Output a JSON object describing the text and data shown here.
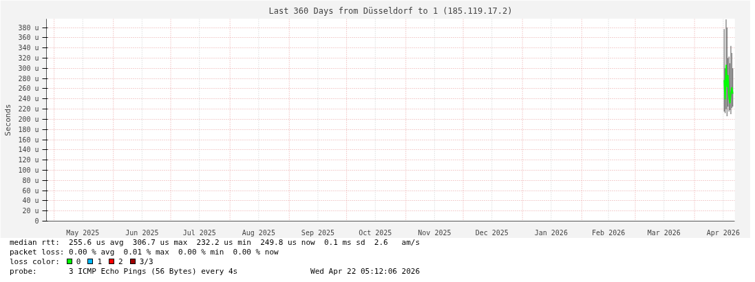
{
  "chart_data": {
    "type": "line",
    "title": "Last 360 Days from Düsseldorf to 1 (185.119.17.2)",
    "ylabel": "Seconds",
    "legend_title": "loss color:",
    "xlim": [
      "2025-04-27",
      "2026-04-22"
    ],
    "xticks": [
      {
        "value": "2025-05-01",
        "label": null
      },
      {
        "value": "2025-05-16",
        "label": "May 2025"
      },
      {
        "value": "2025-06-01",
        "label": null
      },
      {
        "value": "2025-06-16",
        "label": "Jun 2025"
      },
      {
        "value": "2025-07-01",
        "label": null
      },
      {
        "value": "2025-07-16",
        "label": "Jul 2025"
      },
      {
        "value": "2025-08-01",
        "label": null
      },
      {
        "value": "2025-08-16",
        "label": "Aug 2025"
      },
      {
        "value": "2025-09-01",
        "label": null
      },
      {
        "value": "2025-09-16",
        "label": "Sep 2025"
      },
      {
        "value": "2025-10-01",
        "label": null
      },
      {
        "value": "2025-10-16",
        "label": "Oct 2025"
      },
      {
        "value": "2025-11-01",
        "label": null
      },
      {
        "value": "2025-11-16",
        "label": "Nov 2025"
      },
      {
        "value": "2025-12-01",
        "label": null
      },
      {
        "value": "2025-12-16",
        "label": "Dec 2025"
      },
      {
        "value": "2026-01-01",
        "label": null
      },
      {
        "value": "2026-01-16",
        "label": "Jan 2026"
      },
      {
        "value": "2026-02-01",
        "label": null
      },
      {
        "value": "2026-02-15",
        "label": "Feb 2026"
      },
      {
        "value": "2026-03-01",
        "label": null
      },
      {
        "value": "2026-03-16",
        "label": "Mar 2026"
      },
      {
        "value": "2026-04-01",
        "label": null
      },
      {
        "value": "2026-04-16",
        "label": "Apr 2026"
      }
    ],
    "ylim": [
      0,
      397
    ],
    "yticks": [
      0,
      {
        "value": 20,
        "label": "20 u"
      },
      {
        "value": 40,
        "label": "40 u"
      },
      {
        "value": 60,
        "label": "60 u"
      },
      {
        "value": 80,
        "label": "80 u"
      },
      {
        "value": 100,
        "label": "100 u"
      },
      {
        "value": 120,
        "label": "120 u"
      },
      {
        "value": 140,
        "label": "140 u"
      },
      {
        "value": 160,
        "label": "160 u"
      },
      {
        "value": 180,
        "label": "180 u"
      },
      {
        "value": 200,
        "label": "200 u"
      },
      {
        "value": 220,
        "label": "220 u"
      },
      {
        "value": 240,
        "label": "240 u"
      },
      {
        "value": 260,
        "label": "260 u"
      },
      {
        "value": 280,
        "label": "280 u"
      },
      {
        "value": 300,
        "label": "300 u"
      },
      {
        "value": 320,
        "label": "320 u"
      },
      {
        "value": 340,
        "label": "340 u"
      },
      {
        "value": 360,
        "label": "360 u"
      },
      {
        "value": 380,
        "label": "380 u"
      }
    ],
    "grid": true,
    "legend": "bottom",
    "series": [
      {
        "name": "0",
        "color": "#00ff00",
        "x": [
          "2026-04-16T12:00",
          "2026-04-17T00:00",
          "2026-04-17T12:00",
          "2026-04-18T00:00",
          "2026-04-18T12:00",
          "2026-04-19T00:00",
          "2026-04-19T12:00",
          "2026-04-20T00:00",
          "2026-04-20T12:00",
          "2026-04-21T00:00"
        ],
        "values": [
          277,
          240,
          306,
          264,
          286,
          243,
          232,
          251,
          262,
          250
        ],
        "lower": [
          215,
          212,
          220,
          206,
          225,
          215,
          218,
          210,
          222,
          225
        ],
        "upper": [
          377,
          300,
          396,
          380,
          320,
          323,
          310,
          344,
          330,
          300
        ]
      },
      {
        "name": "1",
        "color": "#00b8ff"
      },
      {
        "name": "2",
        "color": "#ff0000"
      },
      {
        "name": "3/3",
        "color": "#a00000"
      }
    ],
    "annotations": [
      "median rtt:  255.6 us avg  306.7 us max  232.2 us min  249.8 us now  0.1 ms sd  2.6   am/s",
      "packet loss: 0.00 % avg  0.01 % max  0.00 % min  0.00 % now",
      "probe:       3 ICMP Echo Pings (56 Bytes) every 4s",
      "Wed Apr 22 05:12:06 2026"
    ]
  }
}
